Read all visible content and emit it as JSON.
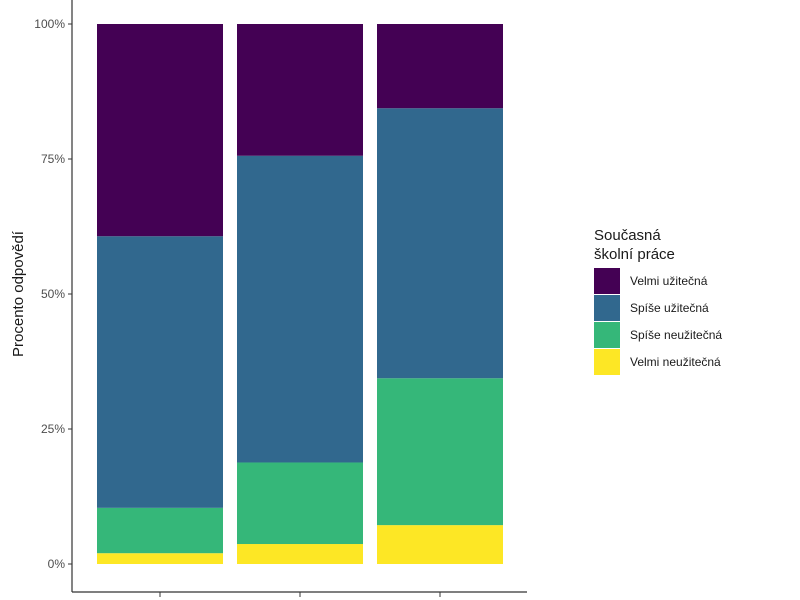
{
  "chart_data": {
    "type": "bar",
    "stacked": true,
    "categories": [
      "",
      "",
      ""
    ],
    "ylabel": "Procento odpovědí",
    "xlabel": "",
    "ylim": [
      0,
      100
    ],
    "yticks": [
      "0%",
      "25%",
      "50%",
      "75%",
      "100%"
    ],
    "grid": false,
    "legend": {
      "position": "right",
      "title_lines": [
        "Současná",
        "školní práce"
      ]
    },
    "series": [
      {
        "name": "Velmi užitečná",
        "color": "#440154",
        "values": [
          39.3,
          24.4,
          15.6
        ]
      },
      {
        "name": "Spíše užitečná",
        "color": "#31688e",
        "values": [
          50.3,
          56.8,
          50.0
        ]
      },
      {
        "name": "Spíše neužitečná",
        "color": "#35b779",
        "values": [
          8.4,
          15.1,
          27.2
        ]
      },
      {
        "name": "Velmi neužitečná",
        "color": "#fde725",
        "values": [
          2.0,
          3.7,
          7.2
        ]
      }
    ]
  }
}
